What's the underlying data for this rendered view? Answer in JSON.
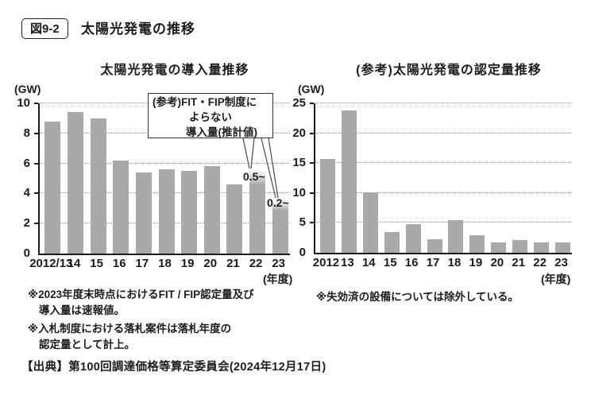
{
  "header": {
    "figure_label": "図9-2",
    "title": "太陽光発電の推移"
  },
  "colors": {
    "bar": "#a9a9a9",
    "grid": "#8f8f8f",
    "axis": "#1c1c1c",
    "text": "#1c1c1c"
  },
  "chart_data": [
    {
      "type": "bar",
      "title": "太陽光発電の導入量推移",
      "unit_label": "(GW)",
      "axis_suffix": "(年度)",
      "categories": [
        "2012/13",
        "14",
        "15",
        "16",
        "17",
        "18",
        "19",
        "20",
        "21",
        "22",
        "23"
      ],
      "values": [
        8.8,
        9.4,
        9.0,
        6.2,
        5.4,
        5.6,
        5.5,
        5.8,
        4.6,
        5.5,
        3.5
      ],
      "light_top_values": [
        null,
        null,
        null,
        null,
        null,
        null,
        null,
        null,
        null,
        0.5,
        0.2
      ],
      "ylim": [
        0,
        10
      ],
      "yticks": [
        0,
        2,
        4,
        6,
        8,
        10
      ],
      "grid": "dotted-horizontal",
      "annotation": {
        "box_lines": [
          "(参考)FIT・FIP制度に",
          "よらない",
          "導入量(推計値)"
        ],
        "labels": [
          {
            "text": "0.5~",
            "bar": "22"
          },
          {
            "text": "0.2~",
            "bar": "23"
          }
        ]
      }
    },
    {
      "type": "bar",
      "title": "(参考)太陽光発電の認定量推移",
      "unit_label": "(GW)",
      "axis_suffix": "(年度)",
      "categories": [
        "2012",
        "13",
        "14",
        "15",
        "16",
        "17",
        "18",
        "19",
        "20",
        "21",
        "22",
        "23"
      ],
      "values": [
        15.7,
        23.8,
        10.1,
        3.5,
        4.8,
        2.2,
        5.5,
        2.9,
        1.7,
        2.1,
        1.7,
        1.7
      ],
      "ylim": [
        0,
        25
      ],
      "yticks": [
        0,
        5,
        10,
        15,
        20,
        25
      ],
      "grid": "dotted-horizontal"
    }
  ],
  "footnotes": {
    "left": [
      {
        "lines": [
          "※2023年度末時点におけるFIT / FIP認定量及び",
          "導入量は速報値。"
        ]
      },
      {
        "lines": [
          "※入札制度における落札案件は落札年度の",
          "認定量として計上。"
        ]
      }
    ],
    "right": [
      "※失効済の設備については除外している。"
    ]
  },
  "source": "【出典】第100回調達価格等算定委員会(2024年12月17日)"
}
